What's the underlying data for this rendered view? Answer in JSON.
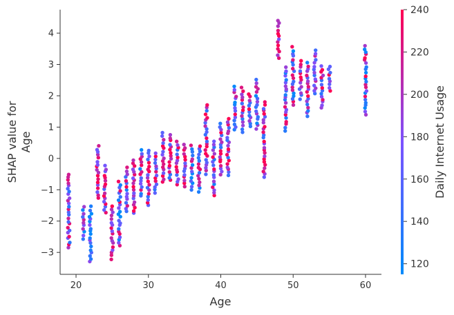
{
  "chart_data": {
    "type": "scatter",
    "title": "",
    "xlabel": "Age",
    "ylabel_lines": [
      "SHAP value for",
      "Age"
    ],
    "xlim": [
      17.8,
      62.2
    ],
    "ylim": [
      -3.7,
      4.75
    ],
    "x_ticks": [
      20,
      30,
      40,
      50,
      60
    ],
    "y_ticks": [
      -3,
      -2,
      -1,
      0,
      1,
      2,
      3,
      4
    ],
    "colorbar": {
      "label": "Daily Internet Usage",
      "range": [
        115,
        240
      ],
      "ticks": [
        120,
        140,
        160,
        180,
        200,
        220,
        240
      ],
      "colormap": [
        "#008bfb",
        "#7c52ff",
        "#ff0052"
      ]
    },
    "series": [
      {
        "x": 19,
        "y_min": -2.85,
        "y_max": -0.5,
        "color_mix": [
          0.25,
          0.55,
          0.85
        ]
      },
      {
        "x": 21,
        "y_min": -2.55,
        "y_max": -1.55,
        "color_mix": [
          0.05,
          0.4,
          0.7
        ]
      },
      {
        "x": 22,
        "y_min": -3.3,
        "y_max": -1.55,
        "color_mix": [
          0.05,
          0.2,
          0.6
        ]
      },
      {
        "x": 23,
        "y_min": -1.25,
        "y_max": 0.4,
        "color_mix": [
          0.5,
          0.8,
          0.95
        ]
      },
      {
        "x": 24,
        "y_min": -1.75,
        "y_max": -0.25,
        "color_mix": [
          0.4,
          0.7,
          0.9
        ]
      },
      {
        "x": 25,
        "y_min": -3.2,
        "y_max": -1.55,
        "color_mix": [
          0.6,
          0.85,
          1.0
        ]
      },
      {
        "x": 26,
        "y_min": -2.8,
        "y_max": -0.75,
        "color_mix": [
          0.1,
          0.4,
          0.9
        ]
      },
      {
        "x": 27,
        "y_min": -1.7,
        "y_max": -0.3,
        "color_mix": [
          0.2,
          0.55,
          0.9
        ]
      },
      {
        "x": 28,
        "y_min": -1.75,
        "y_max": -0.05,
        "color_mix": [
          0.5,
          0.75,
          0.95
        ]
      },
      {
        "x": 29,
        "y_min": -1.2,
        "y_max": 0.25,
        "color_mix": [
          0.1,
          0.4,
          0.85
        ]
      },
      {
        "x": 30,
        "y_min": -1.5,
        "y_max": 0.25,
        "color_mix": [
          0.3,
          0.6,
          0.95
        ]
      },
      {
        "x": 31,
        "y_min": -1.1,
        "y_max": 0.15,
        "color_mix": [
          0.3,
          0.6,
          0.9
        ]
      },
      {
        "x": 32,
        "y_min": -0.75,
        "y_max": 0.8,
        "color_mix": [
          0.4,
          0.75,
          0.95
        ]
      },
      {
        "x": 33,
        "y_min": -0.7,
        "y_max": 0.75,
        "color_mix": [
          0.3,
          0.7,
          0.95
        ]
      },
      {
        "x": 34,
        "y_min": -0.85,
        "y_max": 0.55,
        "color_mix": [
          0.3,
          0.65,
          0.95
        ]
      },
      {
        "x": 35,
        "y_min": -0.9,
        "y_max": 0.45,
        "color_mix": [
          0.4,
          0.75,
          1.0
        ]
      },
      {
        "x": 36,
        "y_min": -1.0,
        "y_max": 0.4,
        "color_mix": [
          0.05,
          0.4,
          0.8
        ]
      },
      {
        "x": 37,
        "y_min": -1.05,
        "y_max": 0.4,
        "color_mix": [
          0.1,
          0.4,
          0.85
        ]
      },
      {
        "x": 38,
        "y_min": -0.5,
        "y_max": 1.7,
        "color_mix": [
          0.3,
          0.65,
          0.95
        ]
      },
      {
        "x": 39,
        "y_min": -1.2,
        "y_max": 0.55,
        "color_mix": [
          0.2,
          0.55,
          0.95
        ]
      },
      {
        "x": 40,
        "y_min": -0.5,
        "y_max": 1.1,
        "color_mix": [
          0.2,
          0.6,
          0.95
        ]
      },
      {
        "x": 41,
        "y_min": -0.55,
        "y_max": 1.25,
        "color_mix": [
          0.3,
          0.7,
          0.95
        ]
      },
      {
        "x": 42,
        "y_min": 0.9,
        "y_max": 2.3,
        "color_mix": [
          0.1,
          0.4,
          0.9
        ]
      },
      {
        "x": 43,
        "y_min": 0.85,
        "y_max": 2.25,
        "color_mix": [
          0.3,
          0.65,
          0.95
        ]
      },
      {
        "x": 44,
        "y_min": 1.0,
        "y_max": 2.05,
        "color_mix": [
          0.2,
          0.6,
          0.95
        ]
      },
      {
        "x": 45,
        "y_min": 0.95,
        "y_max": 2.5,
        "color_mix": [
          0.05,
          0.3,
          0.7
        ]
      },
      {
        "x": 46,
        "y_min": -0.6,
        "y_max": 1.8,
        "color_mix": [
          0.3,
          0.65,
          0.95
        ]
      },
      {
        "x": 48,
        "y_min": 3.2,
        "y_max": 4.4,
        "color_mix": [
          0.6,
          0.9,
          1.0
        ]
      },
      {
        "x": 49,
        "y_min": 0.9,
        "y_max": 2.9,
        "color_mix": [
          0.2,
          0.55,
          0.9
        ]
      },
      {
        "x": 50,
        "y_min": 1.7,
        "y_max": 3.55,
        "color_mix": [
          0.05,
          0.35,
          0.85
        ]
      },
      {
        "x": 51,
        "y_min": 1.9,
        "y_max": 3.1,
        "color_mix": [
          0.3,
          0.7,
          0.95
        ]
      },
      {
        "x": 52,
        "y_min": 1.35,
        "y_max": 3.05,
        "color_mix": [
          0.2,
          0.5,
          0.9
        ]
      },
      {
        "x": 53,
        "y_min": 2.05,
        "y_max": 3.45,
        "color_mix": [
          0.3,
          0.55,
          0.85
        ]
      },
      {
        "x": 54,
        "y_min": 1.6,
        "y_max": 2.95,
        "color_mix": [
          0.2,
          0.55,
          0.95
        ]
      },
      {
        "x": 55,
        "y_min": 2.15,
        "y_max": 2.95,
        "color_mix": [
          0.4,
          0.7,
          0.95
        ]
      },
      {
        "x": 60,
        "y_min": 1.4,
        "y_max": 3.6,
        "color_mix": [
          0.1,
          0.55,
          0.95
        ]
      }
    ]
  }
}
